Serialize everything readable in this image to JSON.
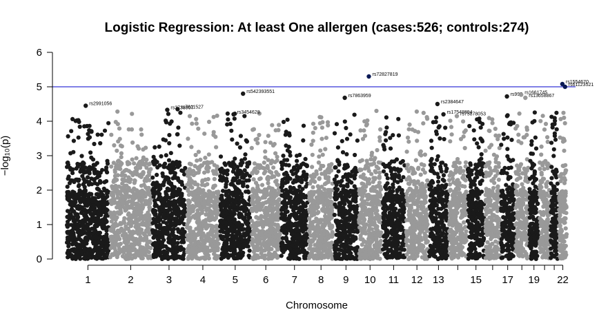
{
  "chart_data": {
    "type": "scatter",
    "title": "Logistic Regression: At least One allergen (cases:526; controls:274)",
    "xlabel": "Chromosome",
    "ylabel": "−log₁₀(p)",
    "ylim": [
      0,
      6
    ],
    "yticks": [
      "0",
      "1",
      "2",
      "3",
      "4",
      "5",
      "6"
    ],
    "x_tick_labels": [
      "1",
      "2",
      "3",
      "4",
      "5",
      "6",
      "7",
      "8",
      "9",
      "10",
      "11",
      "12",
      "13",
      "15",
      "17",
      "19",
      "22"
    ],
    "chromosomes": [
      "1",
      "2",
      "3",
      "4",
      "5",
      "6",
      "7",
      "8",
      "9",
      "10",
      "11",
      "12",
      "13",
      "14",
      "15",
      "16",
      "17",
      "18",
      "19",
      "20",
      "21",
      "22"
    ],
    "chromosome_lengths": [
      249,
      243,
      198,
      191,
      181,
      171,
      159,
      146,
      141,
      136,
      135,
      133,
      115,
      107,
      102,
      90,
      83,
      80,
      59,
      63,
      48,
      51
    ],
    "chromosome_colors": [
      "#1a1a1a",
      "#999999"
    ],
    "threshold": {
      "value": 5,
      "color": "#0000cc"
    },
    "highlight_color": "#0a1a55",
    "annotated_snps": [
      {
        "label": "rs2991056",
        "chr": "1",
        "y": 4.45
      },
      {
        "label": "rs3738907",
        "chr": "3",
        "y": 4.33
      },
      {
        "label": "rs7611527",
        "chr": "3",
        "y": 4.35
      },
      {
        "label": "rs3454628",
        "chr": "5",
        "y": 4.2
      },
      {
        "label": "rs542393551",
        "chr": "5",
        "y": 4.8
      },
      {
        "label": "rs7863959",
        "chr": "9",
        "y": 4.68
      },
      {
        "label": "rs72827819",
        "chr": "10",
        "y": 5.3
      },
      {
        "label": "rs2384647",
        "chr": "13",
        "y": 4.5
      },
      {
        "label": "rs17548894",
        "chr": "13",
        "y": 4.2
      },
      {
        "label": "rs75878053",
        "chr": "14",
        "y": 4.15
      },
      {
        "label": "rs995",
        "chr": "17",
        "y": 4.72
      },
      {
        "label": "rs1661745",
        "chr": "18",
        "y": 4.77
      },
      {
        "label": "rs13658867",
        "chr": "18",
        "y": 4.68
      },
      {
        "label": "rs1554670",
        "chr": "22",
        "y": 5.08
      },
      {
        "label": "rs61123521",
        "chr": "22",
        "y": 5.0
      }
    ]
  }
}
